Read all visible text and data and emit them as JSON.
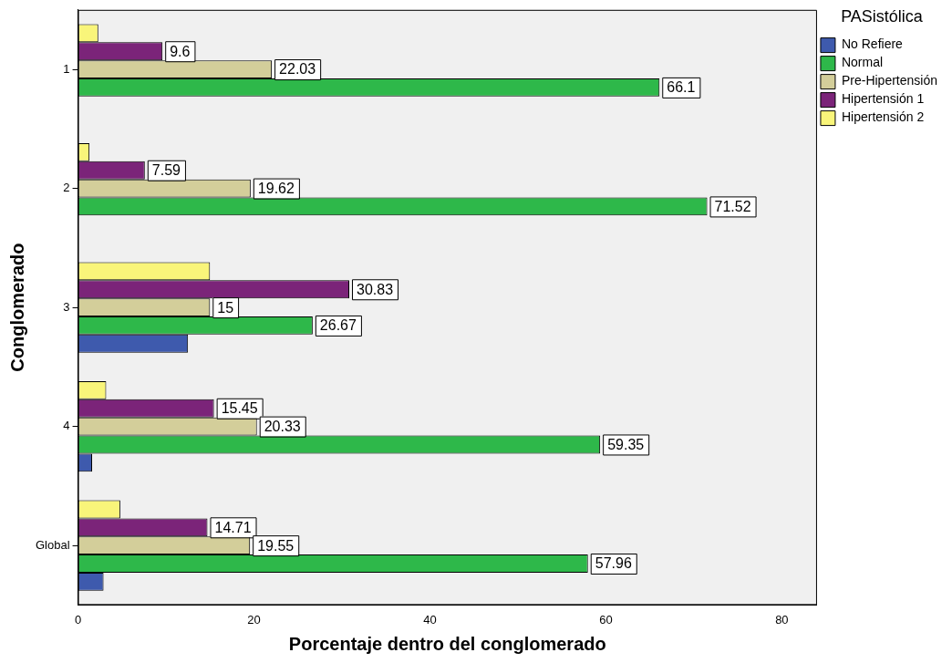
{
  "chart_data": {
    "type": "bar",
    "orientation": "horizontal",
    "xlabel": "Porcentaje dentro del conglomerado",
    "ylabel": "Conglomerado",
    "legend_title": "PASistólica",
    "legend": "right",
    "grid": false,
    "categories": [
      "1",
      "2",
      "3",
      "4",
      "Global"
    ],
    "xlim": [
      0,
      84
    ],
    "xticks": [
      0,
      20,
      40,
      60,
      80
    ],
    "series": [
      {
        "name": "No Refiere",
        "color": "#3e5aad",
        "values": [
          0,
          0,
          12.5,
          1.6,
          2.9
        ]
      },
      {
        "name": "Normal",
        "color": "#2eb84a",
        "values": [
          66.1,
          71.52,
          26.67,
          59.35,
          57.96
        ],
        "value_labels": [
          "66.1",
          "71.52",
          "26.67",
          "59.35",
          "57.96"
        ]
      },
      {
        "name": "Pre-Hipertensión",
        "color": "#d3ce9a",
        "values": [
          22.03,
          19.62,
          15,
          20.33,
          19.55
        ],
        "value_labels": [
          "22.03",
          "19.62",
          "15",
          "20.33",
          "19.55"
        ]
      },
      {
        "name": "Hipertensión 1",
        "color": "#7b2479",
        "values": [
          9.6,
          7.59,
          30.83,
          15.45,
          14.71
        ],
        "value_labels": [
          "9.6",
          "7.59",
          "30.83",
          "15.45",
          "14.71"
        ]
      },
      {
        "name": "Hipertensión 2",
        "color": "#f9f57a",
        "values": [
          2.3,
          1.3,
          15,
          3.2,
          4.8
        ]
      }
    ]
  }
}
